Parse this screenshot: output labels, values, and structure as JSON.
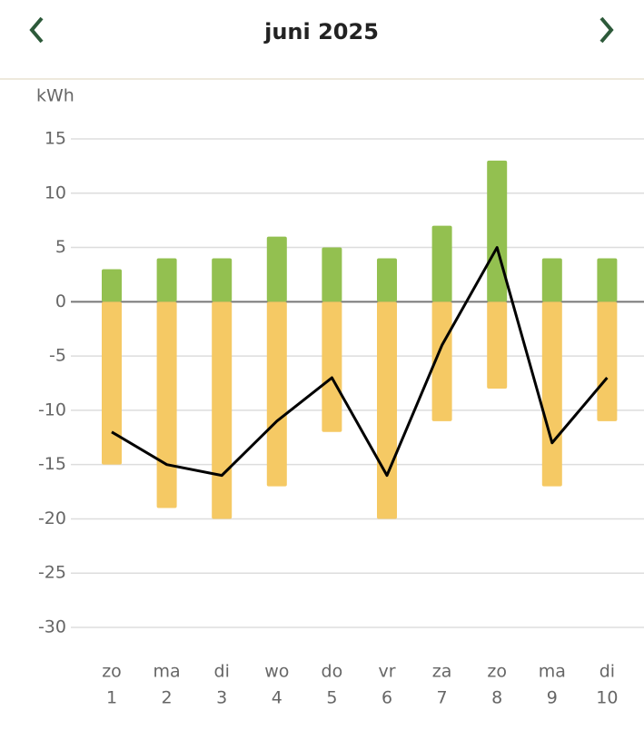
{
  "header": {
    "title": "juni 2025"
  },
  "chart_data": {
    "type": "bar-line",
    "y_unit": "kWh",
    "categories": [
      [
        "zo",
        "1"
      ],
      [
        "ma",
        "2"
      ],
      [
        "di",
        "3"
      ],
      [
        "wo",
        "4"
      ],
      [
        "do",
        "5"
      ],
      [
        "vr",
        "6"
      ],
      [
        "za",
        "7"
      ],
      [
        "zo",
        "8"
      ],
      [
        "ma",
        "9"
      ],
      [
        "di",
        "10"
      ]
    ],
    "series": [
      {
        "type": "bar",
        "color": "#93c050",
        "values": [
          3,
          4,
          4,
          6,
          5,
          4,
          7,
          13,
          4,
          4
        ]
      },
      {
        "type": "bar",
        "color": "#f5c964",
        "values": [
          -15,
          -19,
          -20,
          -17,
          -12,
          -20,
          -11,
          -8,
          -17,
          -11
        ]
      },
      {
        "type": "line",
        "color": "#000000",
        "values": [
          -12,
          -15,
          -16,
          -11,
          -7,
          -16,
          -4,
          5,
          -13,
          -7
        ]
      }
    ],
    "ylim": [
      -30,
      15
    ],
    "yticks": [
      15,
      10,
      5,
      0,
      -5,
      -10,
      -15,
      -20,
      -25,
      -30
    ],
    "grid": true
  }
}
